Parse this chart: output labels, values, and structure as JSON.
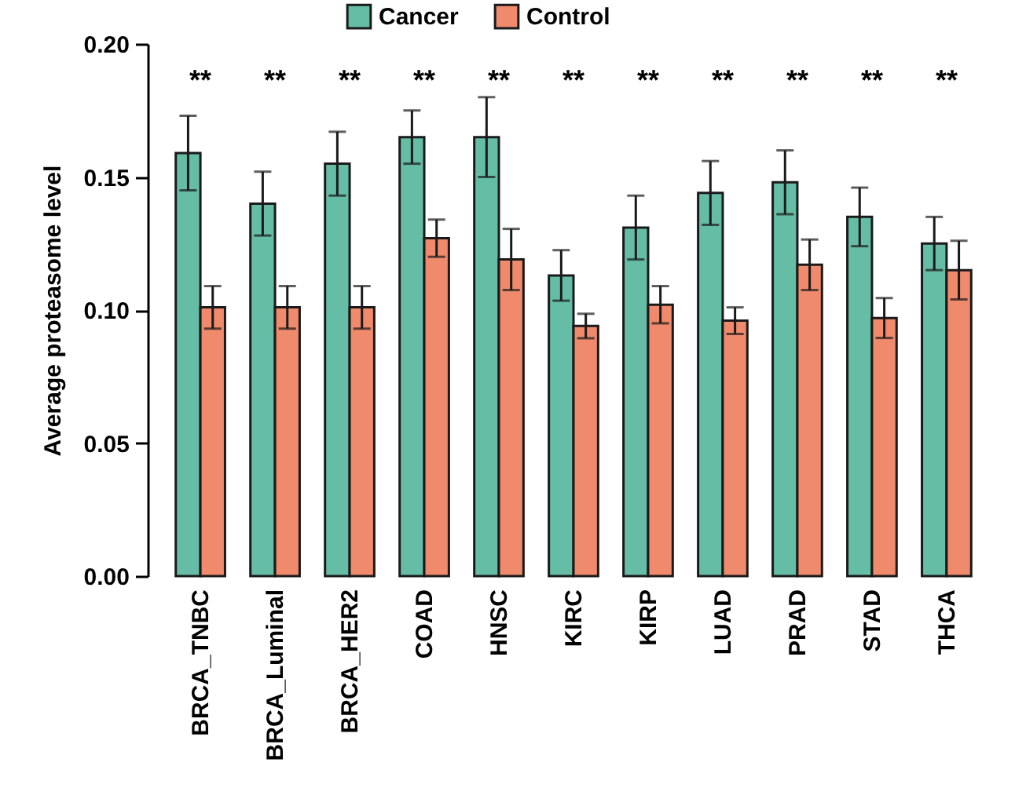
{
  "chart_data": {
    "type": "bar",
    "ylabel": "Average proteasome level",
    "categories": [
      "BRCA_TNBC",
      "BRCA_Luminal",
      "BRCA_HER2",
      "COAD",
      "HNSC",
      "KIRC",
      "KIRP",
      "LUAD",
      "PRAD",
      "STAD",
      "THCA"
    ],
    "series": [
      {
        "name": "Cancer",
        "color": "#66bda5",
        "values": [
          0.159,
          0.14,
          0.155,
          0.165,
          0.165,
          0.113,
          0.131,
          0.144,
          0.148,
          0.135,
          0.125
        ],
        "errors": [
          0.014,
          0.012,
          0.012,
          0.01,
          0.015,
          0.0095,
          0.012,
          0.012,
          0.012,
          0.011,
          0.01
        ]
      },
      {
        "name": "Control",
        "color": "#ef8a6c",
        "values": [
          0.101,
          0.101,
          0.101,
          0.127,
          0.119,
          0.094,
          0.102,
          0.096,
          0.117,
          0.097,
          0.115
        ],
        "errors": [
          0.008,
          0.008,
          0.008,
          0.007,
          0.0115,
          0.0046,
          0.007,
          0.005,
          0.0095,
          0.0075,
          0.011
        ]
      }
    ],
    "ylim": [
      0,
      0.2
    ],
    "yticks": [
      {
        "value": 0,
        "label": "0.00"
      },
      {
        "value": 0.05,
        "label": "0.05"
      },
      {
        "value": 0.1,
        "label": "0.10"
      },
      {
        "value": 0.15,
        "label": "0.15"
      },
      {
        "value": 0.2,
        "label": "0.20"
      }
    ],
    "legend": "top",
    "grid": false,
    "annotations": [
      "**",
      "**",
      "**",
      "**",
      "**",
      "**",
      "**",
      "**",
      "**",
      "**",
      "**"
    ]
  }
}
